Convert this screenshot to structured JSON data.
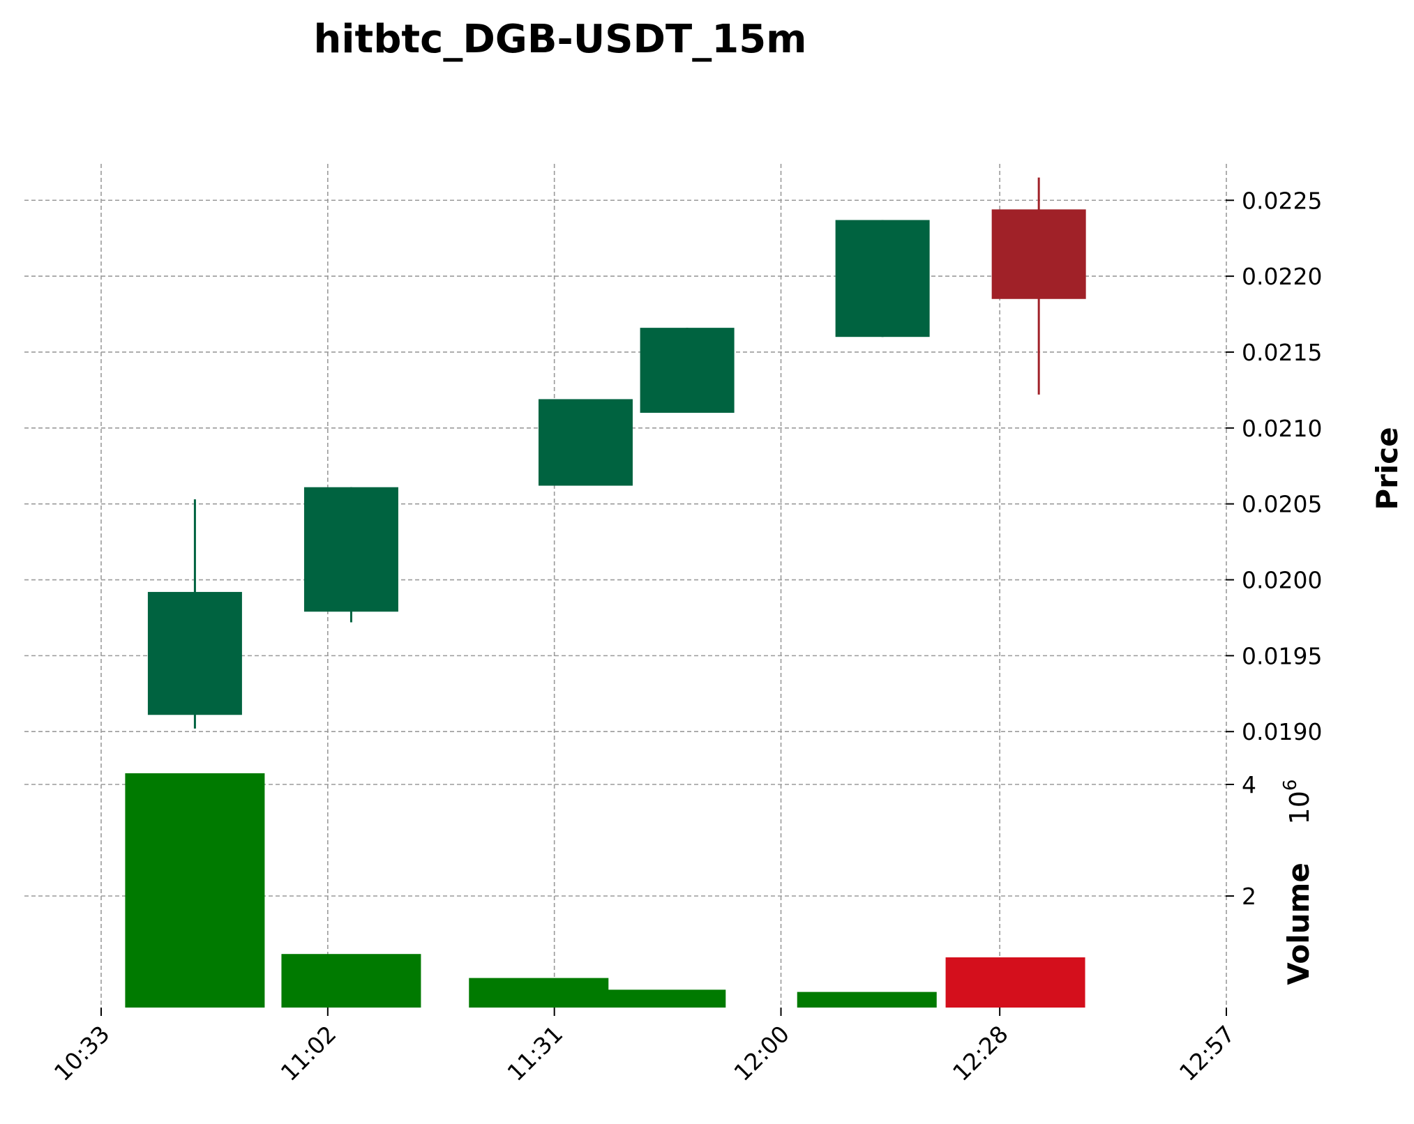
{
  "chart_data": {
    "type": "candlestick",
    "title": "hitbtc_DGB-USDT_15m",
    "price_panel": {
      "ylabel": "Price",
      "ylim": [
        0.0189,
        0.02274
      ],
      "yticks": [
        0.019,
        0.0195,
        0.02,
        0.0205,
        0.021,
        0.0215,
        0.022,
        0.0225
      ],
      "ytick_labels": [
        "0.0190",
        "0.0195",
        "0.0200",
        "0.0205",
        "0.0210",
        "0.0215",
        "0.0220",
        "0.0225"
      ],
      "up_color": "#006340",
      "down_color": "#a02128",
      "candles": [
        {
          "time": "10:45",
          "open": 0.01911,
          "high": 0.02053,
          "low": 0.01902,
          "close": 0.01992
        },
        {
          "time": "11:05",
          "open": 0.01979,
          "high": 0.02061,
          "low": 0.01972,
          "close": 0.02061
        },
        {
          "time": "11:35",
          "open": 0.02062,
          "high": 0.02119,
          "low": 0.02062,
          "close": 0.02119
        },
        {
          "time": "11:48",
          "open": 0.0211,
          "high": 0.02166,
          "low": 0.0211,
          "close": 0.02166
        },
        {
          "time": "12:13",
          "open": 0.0216,
          "high": 0.02237,
          "low": 0.0216,
          "close": 0.02237
        },
        {
          "time": "12:33",
          "open": 0.02244,
          "high": 0.02265,
          "low": 0.02122,
          "close": 0.02185
        }
      ]
    },
    "volume_panel": {
      "ylabel": "Volume",
      "exponent_label": "10",
      "exponent_power": "6",
      "ylim": [
        0,
        4.5
      ],
      "yticks": [
        2,
        4
      ],
      "ytick_labels": [
        "2",
        "4"
      ],
      "up_color": "#007a00",
      "down_color": "#d40f1c",
      "bars": [
        {
          "time": "10:45",
          "volume": 4.2,
          "direction": "up"
        },
        {
          "time": "11:05",
          "volume": 0.96,
          "direction": "up"
        },
        {
          "time": "11:29",
          "volume": 0.53,
          "direction": "up"
        },
        {
          "time": "11:44",
          "volume": 0.32,
          "direction": "up"
        },
        {
          "time": "12:11",
          "volume": 0.28,
          "direction": "up"
        },
        {
          "time": "12:30",
          "volume": 0.9,
          "direction": "down"
        }
      ]
    },
    "xaxis": {
      "ticks": [
        "10:33",
        "11:02",
        "11:31",
        "12:00",
        "12:28",
        "12:57"
      ],
      "grid": true
    },
    "grid": true
  }
}
